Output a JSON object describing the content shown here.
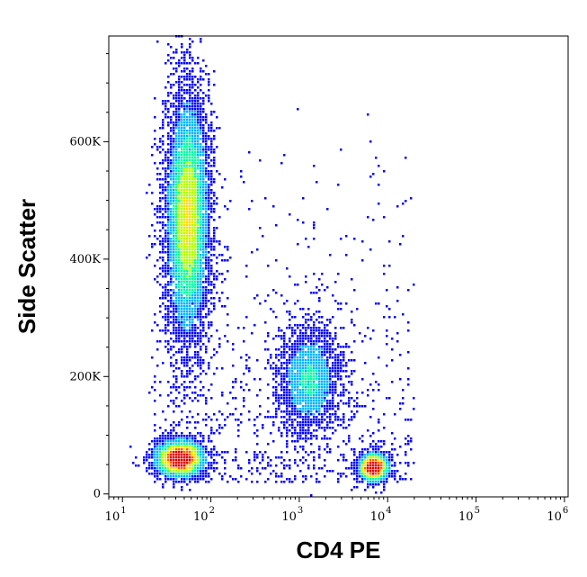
{
  "chart_data": {
    "type": "scatter",
    "subtype": "flow-cytometry density dot plot",
    "xlabel": "CD4 PE",
    "ylabel": "Side Scatter",
    "x_scale": "log",
    "x_range": [
      7,
      1100000
    ],
    "y_scale": "linear",
    "y_range": [
      -5000,
      780000
    ],
    "x_ticks": [
      {
        "value": 10,
        "base": "10",
        "exp": "1"
      },
      {
        "value": 100,
        "base": "10",
        "exp": "2"
      },
      {
        "value": 1000,
        "base": "10",
        "exp": "3"
      },
      {
        "value": 10000,
        "base": "10",
        "exp": "4"
      },
      {
        "value": 100000,
        "base": "10",
        "exp": "5"
      },
      {
        "value": 1000000,
        "base": "10",
        "exp": "6"
      }
    ],
    "y_ticks": [
      {
        "value": 0,
        "label": "0"
      },
      {
        "value": 200000,
        "label": "200K"
      },
      {
        "value": 400000,
        "label": "400K"
      },
      {
        "value": 600000,
        "label": "600K"
      }
    ],
    "grid": false,
    "legend": "none",
    "colormap": [
      "#0000ff",
      "#00b4ff",
      "#00ffa0",
      "#b4ff00",
      "#ffdc00",
      "#ff6400",
      "#e00000"
    ],
    "populations": [
      {
        "x_center": 55,
        "x_spread_log10": 0.13,
        "y_center": 470000,
        "y_spread": 115000,
        "events": 6000,
        "peak_density": 0.55
      },
      {
        "x_center": 45,
        "x_spread_log10": 0.15,
        "y_center": 60000,
        "y_spread": 17000,
        "events": 2600,
        "peak_density": 1.0
      },
      {
        "x_center": 1300,
        "x_spread_log10": 0.18,
        "y_center": 195000,
        "y_spread": 48000,
        "events": 2000,
        "peak_density": 0.3
      },
      {
        "x_center": 7000,
        "x_spread_log10": 0.09,
        "y_center": 45000,
        "y_spread": 13000,
        "events": 1600,
        "peak_density": 1.0
      }
    ]
  }
}
